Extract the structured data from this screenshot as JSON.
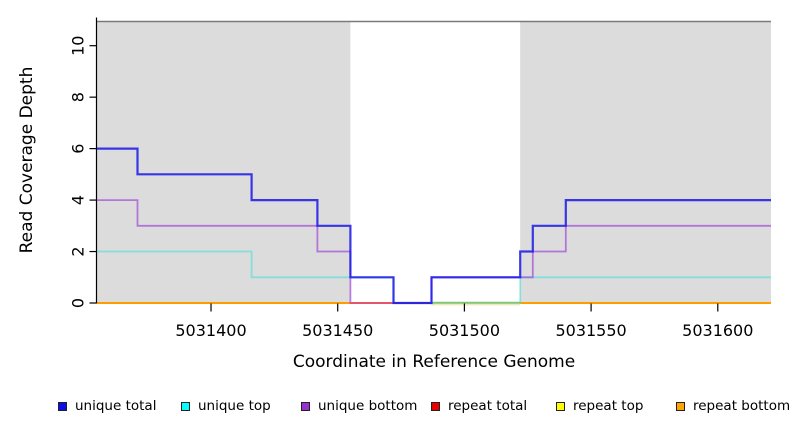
{
  "chart_data": {
    "type": "line",
    "subtype": "step-coverage",
    "title": "",
    "xlabel": "Coordinate in Reference Genome",
    "ylabel": "Read Coverage Depth",
    "xlim": [
      5031355,
      5031621
    ],
    "ylim": [
      0,
      11
    ],
    "x_ticks": [
      5031400,
      5031450,
      5031500,
      5031550,
      5031600
    ],
    "y_ticks": [
      0,
      2,
      4,
      6,
      8,
      10
    ],
    "grid": false,
    "shade_color": "#DCDCDC",
    "top_rule_color": "#7A7A7A",
    "axis_color": "#000000",
    "shaded_regions": [
      {
        "from": 5031355,
        "to": 5031455
      },
      {
        "from": 5031522,
        "to": 5031621
      }
    ],
    "series": [
      {
        "name": "repeat total",
        "legend_color": "#E80000",
        "line_color": "#E03030",
        "opacity": 0.8,
        "width": 1.6,
        "points": [
          [
            5031355,
            0
          ],
          [
            5031621,
            0
          ]
        ]
      },
      {
        "name": "repeat top",
        "legend_color": "#FFFF00",
        "line_color": "#F2E020",
        "opacity": 0.8,
        "width": 1.4,
        "points": [
          [
            5031355,
            0
          ],
          [
            5031621,
            0
          ]
        ]
      },
      {
        "name": "repeat bottom",
        "legend_color": "#FFA500",
        "line_color": "#FF9C00",
        "opacity": 1.0,
        "width": 2.0,
        "points": [
          [
            5031355,
            0
          ],
          [
            5031621,
            0
          ]
        ]
      },
      {
        "name": "unique top",
        "legend_color": "#00FFFF",
        "line_color": "#2FE0D8",
        "opacity": 0.5,
        "width": 1.8,
        "points": [
          [
            5031355,
            2
          ],
          [
            5031416,
            1
          ],
          [
            5031472,
            0
          ],
          [
            5031522,
            1
          ],
          [
            5031621,
            1
          ]
        ]
      },
      {
        "name": "unique bottom",
        "legend_color": "#9933CC",
        "line_color": "#9B3FD8",
        "opacity": 0.65,
        "width": 1.8,
        "points": [
          [
            5031355,
            4
          ],
          [
            5031371,
            3
          ],
          [
            5031442,
            2
          ],
          [
            5031455,
            0
          ],
          [
            5031487,
            1
          ],
          [
            5031527,
            2
          ],
          [
            5031540,
            3
          ],
          [
            5031621,
            3
          ]
        ]
      },
      {
        "name": "unique total",
        "legend_color": "#0D0DE8",
        "line_color": "#1B18E8",
        "opacity": 0.85,
        "width": 2.2,
        "points": [
          [
            5031355,
            6
          ],
          [
            5031371,
            5
          ],
          [
            5031416,
            4
          ],
          [
            5031442,
            3
          ],
          [
            5031455,
            1
          ],
          [
            5031472,
            0
          ],
          [
            5031487,
            1
          ],
          [
            5031522,
            2
          ],
          [
            5031527,
            3
          ],
          [
            5031540,
            4
          ],
          [
            5031621,
            4
          ]
        ]
      }
    ],
    "baseline_overlap_segments": [
      {
        "from": 5031455,
        "to": 5031472,
        "color": "#E2556A",
        "dy": 0,
        "width": 2.0
      },
      {
        "from": 5031487,
        "to": 5031522,
        "color": "#7CC87F",
        "dy": -0.4,
        "width": 1.7
      },
      {
        "from": 5031487,
        "to": 5031522,
        "color": "#EFE9BE",
        "dy": 1.6,
        "width": 1.6
      }
    ],
    "legend": {
      "position": "bottom",
      "items": [
        {
          "label": "unique total",
          "color": "#0D0DE8"
        },
        {
          "label": "unique top",
          "color": "#00FFFF"
        },
        {
          "label": "unique bottom",
          "color": "#9933CC"
        },
        {
          "label": "repeat total",
          "color": "#E80000"
        },
        {
          "label": "repeat top",
          "color": "#FFFF00"
        },
        {
          "label": "repeat bottom",
          "color": "#FFA500"
        }
      ]
    }
  }
}
